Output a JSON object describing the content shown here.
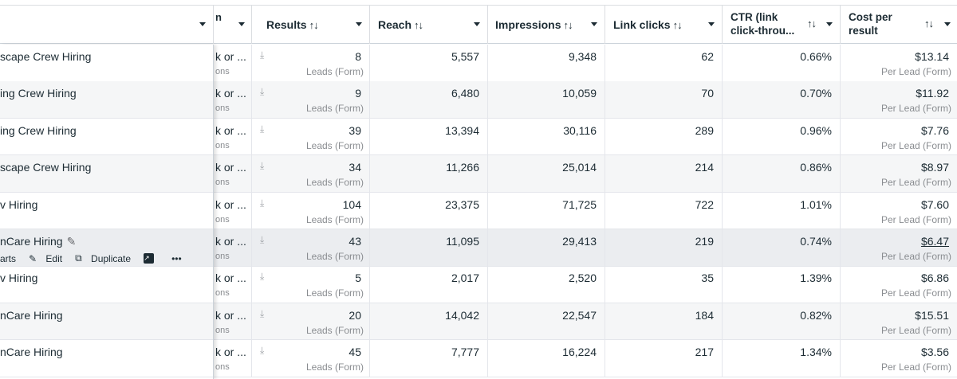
{
  "header": {
    "name_col": "",
    "cut_col": "n",
    "results": "Results",
    "reach": "Reach",
    "impressions": "Impressions",
    "link_clicks": "Link clicks",
    "ctr_line1": "CTR (link",
    "ctr_line2": "click-throu...",
    "cpr_line1": "Cost per",
    "cpr_line2": "result",
    "sort_glyph": "↑↓"
  },
  "row_actions": {
    "charts": "arts",
    "edit": "Edit",
    "duplicate": "Duplicate",
    "more": "•••"
  },
  "rows": [
    {
      "name": "scape Crew Hiring",
      "cut1": "k or ...",
      "cut2": "ons",
      "results": "8",
      "results_sub": "Leads (Form)",
      "reach": "5,557",
      "impressions": "9,348",
      "link_clicks": "62",
      "ctr": "0.66%",
      "cpr": "$13.14",
      "cpr_sub": "Per Lead (Form)"
    },
    {
      "name": "ing Crew Hiring",
      "cut1": "k or ...",
      "cut2": "ons",
      "results": "9",
      "results_sub": "Leads (Form)",
      "reach": "6,480",
      "impressions": "10,059",
      "link_clicks": "70",
      "ctr": "0.70%",
      "cpr": "$11.92",
      "cpr_sub": "Per Lead (Form)"
    },
    {
      "name": "ing Crew Hiring",
      "cut1": "k or ...",
      "cut2": "ons",
      "results": "39",
      "results_sub": "Leads (Form)",
      "reach": "13,394",
      "impressions": "30,116",
      "link_clicks": "289",
      "ctr": "0.96%",
      "cpr": "$7.76",
      "cpr_sub": "Per Lead (Form)"
    },
    {
      "name": "scape Crew Hiring",
      "cut1": "k or ...",
      "cut2": "ons",
      "results": "34",
      "results_sub": "Leads (Form)",
      "reach": "11,266",
      "impressions": "25,014",
      "link_clicks": "214",
      "ctr": "0.86%",
      "cpr": "$8.97",
      "cpr_sub": "Per Lead (Form)"
    },
    {
      "name": "v Hiring",
      "cut1": "k or ...",
      "cut2": "ons",
      "results": "104",
      "results_sub": "Leads (Form)",
      "reach": "23,375",
      "impressions": "71,725",
      "link_clicks": "722",
      "ctr": "1.01%",
      "cpr": "$7.60",
      "cpr_sub": "Per Lead (Form)"
    },
    {
      "name": "nCare Hiring",
      "cut1": "k or ...",
      "cut2": "ons",
      "results": "43",
      "results_sub": "Leads (Form)",
      "reach": "11,095",
      "impressions": "29,413",
      "link_clicks": "219",
      "ctr": "0.74%",
      "cpr": "$6.47",
      "cpr_sub": "Per Lead (Form)"
    },
    {
      "name": "v Hiring",
      "cut1": "k or ...",
      "cut2": "ons",
      "results": "5",
      "results_sub": "Leads (Form)",
      "reach": "2,017",
      "impressions": "2,520",
      "link_clicks": "35",
      "ctr": "1.39%",
      "cpr": "$6.86",
      "cpr_sub": "Per Lead (Form)"
    },
    {
      "name": "nCare Hiring",
      "cut1": "k or ...",
      "cut2": "ons",
      "results": "20",
      "results_sub": "Leads (Form)",
      "reach": "14,042",
      "impressions": "22,547",
      "link_clicks": "184",
      "ctr": "0.82%",
      "cpr": "$15.51",
      "cpr_sub": "Per Lead (Form)"
    },
    {
      "name": "nCare Hiring",
      "cut1": "k or ...",
      "cut2": "ons",
      "results": "45",
      "results_sub": "Leads (Form)",
      "reach": "7,777",
      "impressions": "16,224",
      "link_clicks": "217",
      "ctr": "1.34%",
      "cpr": "$3.56",
      "cpr_sub": "Per Lead (Form)"
    }
  ],
  "colors": {
    "text": "#1c2b33",
    "muted": "#8a8d91",
    "alt_row": "#f5f6f7",
    "hover_row": "#ebedf0"
  }
}
